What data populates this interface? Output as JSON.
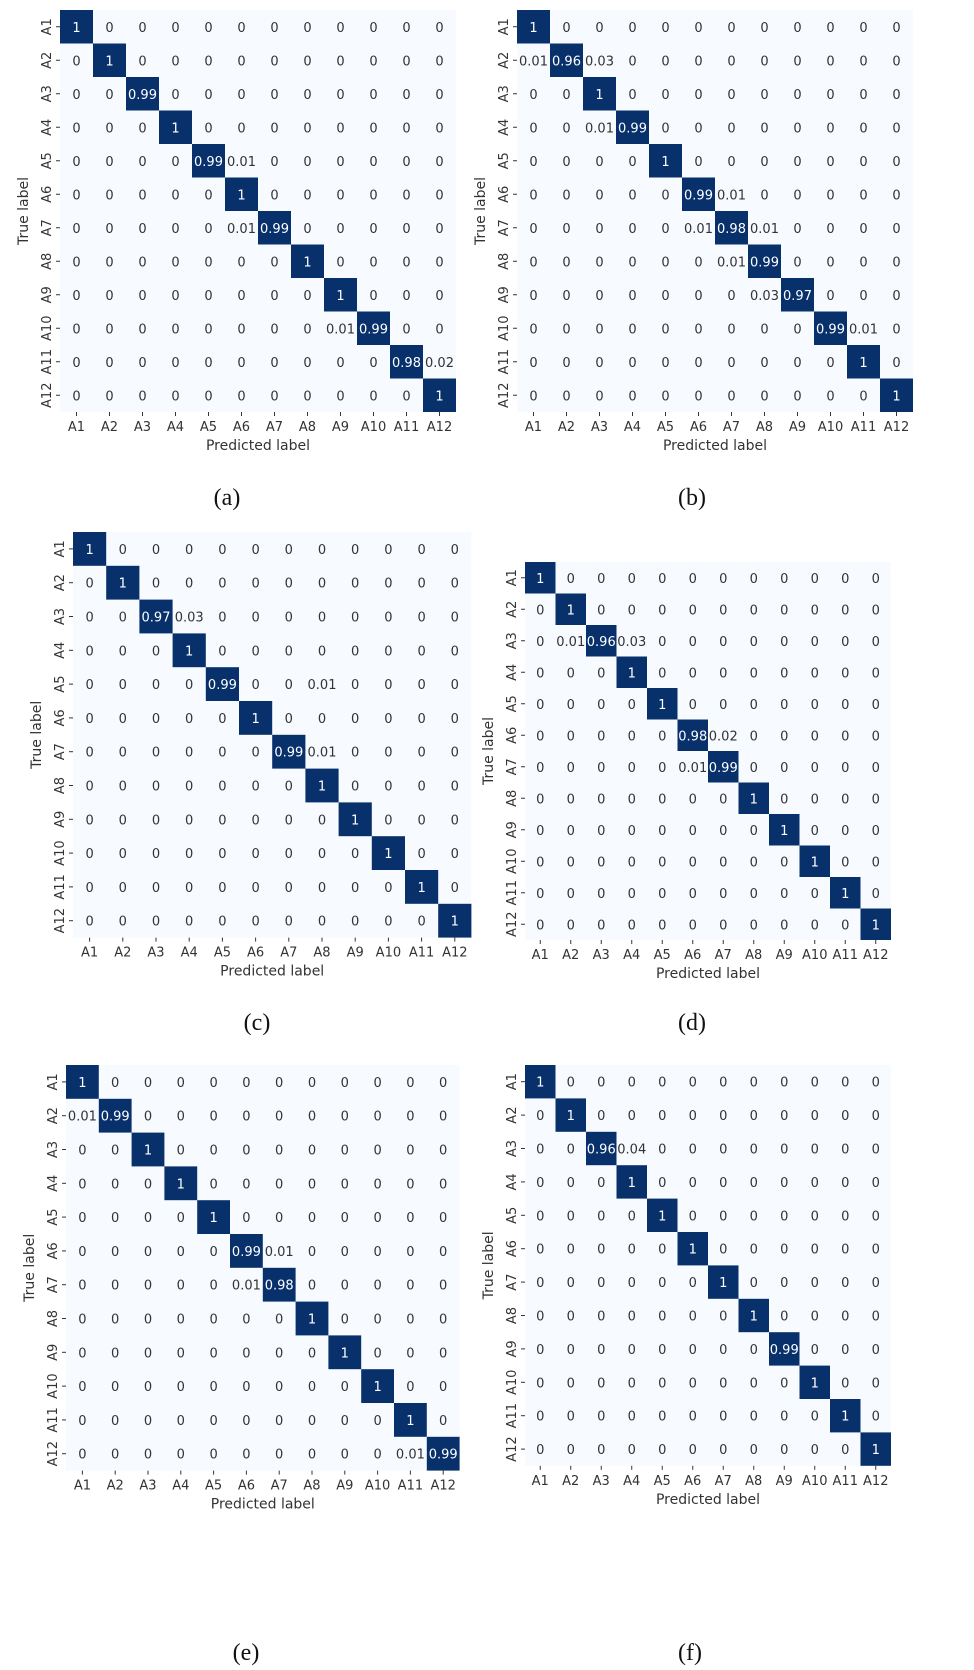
{
  "colors": {
    "diagonal": "#08306b",
    "background": "#f7fbff",
    "text_dark": "#333333",
    "text_light": "#ffffff"
  },
  "chart_data": [
    {
      "type": "heatmap",
      "panel": "(a)",
      "xlabel": "Predicted label",
      "ylabel": "True label",
      "labels": [
        "A1",
        "A2",
        "A3",
        "A4",
        "A5",
        "A6",
        "A7",
        "A8",
        "A9",
        "A10",
        "A11",
        "A12"
      ],
      "matrix": [
        [
          "1",
          "0",
          "0",
          "0",
          "0",
          "0",
          "0",
          "0",
          "0",
          "0",
          "0",
          "0"
        ],
        [
          "0",
          "1",
          "0",
          "0",
          "0",
          "0",
          "0",
          "0",
          "0",
          "0",
          "0",
          "0"
        ],
        [
          "0",
          "0",
          "0.99",
          "0",
          "0",
          "0",
          "0",
          "0",
          "0",
          "0",
          "0",
          "0"
        ],
        [
          "0",
          "0",
          "0",
          "1",
          "0",
          "0",
          "0",
          "0",
          "0",
          "0",
          "0",
          "0"
        ],
        [
          "0",
          "0",
          "0",
          "0",
          "0.99",
          "0.01",
          "0",
          "0",
          "0",
          "0",
          "0",
          "0"
        ],
        [
          "0",
          "0",
          "0",
          "0",
          "0",
          "1",
          "0",
          "0",
          "0",
          "0",
          "0",
          "0"
        ],
        [
          "0",
          "0",
          "0",
          "0",
          "0",
          "0.01",
          "0.99",
          "0",
          "0",
          "0",
          "0",
          "0"
        ],
        [
          "0",
          "0",
          "0",
          "0",
          "0",
          "0",
          "0",
          "1",
          "0",
          "0",
          "0",
          "0"
        ],
        [
          "0",
          "0",
          "0",
          "0",
          "0",
          "0",
          "0",
          "0",
          "1",
          "0",
          "0",
          "0"
        ],
        [
          "0",
          "0",
          "0",
          "0",
          "0",
          "0",
          "0",
          "0",
          "0.01",
          "0.99",
          "0",
          "0"
        ],
        [
          "0",
          "0",
          "0",
          "0",
          "0",
          "0",
          "0",
          "0",
          "0",
          "0",
          "0.98",
          "0.02"
        ],
        [
          "0",
          "0",
          "0",
          "0",
          "0",
          "0",
          "0",
          "0",
          "0",
          "0",
          "0",
          "1"
        ]
      ]
    },
    {
      "type": "heatmap",
      "panel": "(b)",
      "xlabel": "Predicted label",
      "ylabel": "True label",
      "labels": [
        "A1",
        "A2",
        "A3",
        "A4",
        "A5",
        "A6",
        "A7",
        "A8",
        "A9",
        "A10",
        "A11",
        "A12"
      ],
      "matrix": [
        [
          "1",
          "0",
          "0",
          "0",
          "0",
          "0",
          "0",
          "0",
          "0",
          "0",
          "0",
          "0"
        ],
        [
          "0.01",
          "0.96",
          "0.03",
          "0",
          "0",
          "0",
          "0",
          "0",
          "0",
          "0",
          "0",
          "0"
        ],
        [
          "0",
          "0",
          "1",
          "0",
          "0",
          "0",
          "0",
          "0",
          "0",
          "0",
          "0",
          "0"
        ],
        [
          "0",
          "0",
          "0.01",
          "0.99",
          "0",
          "0",
          "0",
          "0",
          "0",
          "0",
          "0",
          "0"
        ],
        [
          "0",
          "0",
          "0",
          "0",
          "1",
          "0",
          "0",
          "0",
          "0",
          "0",
          "0",
          "0"
        ],
        [
          "0",
          "0",
          "0",
          "0",
          "0",
          "0.99",
          "0.01",
          "0",
          "0",
          "0",
          "0",
          "0"
        ],
        [
          "0",
          "0",
          "0",
          "0",
          "0",
          "0.01",
          "0.98",
          "0.01",
          "0",
          "0",
          "0",
          "0"
        ],
        [
          "0",
          "0",
          "0",
          "0",
          "0",
          "0",
          "0.01",
          "0.99",
          "0",
          "0",
          "0",
          "0"
        ],
        [
          "0",
          "0",
          "0",
          "0",
          "0",
          "0",
          "0",
          "0.03",
          "0.97",
          "0",
          "0",
          "0"
        ],
        [
          "0",
          "0",
          "0",
          "0",
          "0",
          "0",
          "0",
          "0",
          "0",
          "0.99",
          "0.01",
          "0"
        ],
        [
          "0",
          "0",
          "0",
          "0",
          "0",
          "0",
          "0",
          "0",
          "0",
          "0",
          "1",
          "0"
        ],
        [
          "0",
          "0",
          "0",
          "0",
          "0",
          "0",
          "0",
          "0",
          "0",
          "0",
          "0",
          "1"
        ]
      ]
    },
    {
      "type": "heatmap",
      "panel": "(c)",
      "xlabel": "Predicted label",
      "ylabel": "True label",
      "labels": [
        "A1",
        "A2",
        "A3",
        "A4",
        "A5",
        "A6",
        "A7",
        "A8",
        "A9",
        "A10",
        "A11",
        "A12"
      ],
      "matrix": [
        [
          "1",
          "0",
          "0",
          "0",
          "0",
          "0",
          "0",
          "0",
          "0",
          "0",
          "0",
          "0"
        ],
        [
          "0",
          "1",
          "0",
          "0",
          "0",
          "0",
          "0",
          "0",
          "0",
          "0",
          "0",
          "0"
        ],
        [
          "0",
          "0",
          "0.97",
          "0.03",
          "0",
          "0",
          "0",
          "0",
          "0",
          "0",
          "0",
          "0"
        ],
        [
          "0",
          "0",
          "0",
          "1",
          "0",
          "0",
          "0",
          "0",
          "0",
          "0",
          "0",
          "0"
        ],
        [
          "0",
          "0",
          "0",
          "0",
          "0.99",
          "0",
          "0",
          "0.01",
          "0",
          "0",
          "0",
          "0"
        ],
        [
          "0",
          "0",
          "0",
          "0",
          "0",
          "1",
          "0",
          "0",
          "0",
          "0",
          "0",
          "0"
        ],
        [
          "0",
          "0",
          "0",
          "0",
          "0",
          "0",
          "0.99",
          "0.01",
          "0",
          "0",
          "0",
          "0"
        ],
        [
          "0",
          "0",
          "0",
          "0",
          "0",
          "0",
          "0",
          "1",
          "0",
          "0",
          "0",
          "0"
        ],
        [
          "0",
          "0",
          "0",
          "0",
          "0",
          "0",
          "0",
          "0",
          "1",
          "0",
          "0",
          "0"
        ],
        [
          "0",
          "0",
          "0",
          "0",
          "0",
          "0",
          "0",
          "0",
          "0",
          "1",
          "0",
          "0"
        ],
        [
          "0",
          "0",
          "0",
          "0",
          "0",
          "0",
          "0",
          "0",
          "0",
          "0",
          "1",
          "0"
        ],
        [
          "0",
          "0",
          "0",
          "0",
          "0",
          "0",
          "0",
          "0",
          "0",
          "0",
          "0",
          "1"
        ]
      ]
    },
    {
      "type": "heatmap",
      "panel": "(d)",
      "xlabel": "Predicted label",
      "ylabel": "True label",
      "labels": [
        "A1",
        "A2",
        "A3",
        "A4",
        "A5",
        "A6",
        "A7",
        "A8",
        "A9",
        "A10",
        "A11",
        "A12"
      ],
      "matrix": [
        [
          "1",
          "0",
          "0",
          "0",
          "0",
          "0",
          "0",
          "0",
          "0",
          "0",
          "0",
          "0"
        ],
        [
          "0",
          "1",
          "0",
          "0",
          "0",
          "0",
          "0",
          "0",
          "0",
          "0",
          "0",
          "0"
        ],
        [
          "0",
          "0.01",
          "0.96",
          "0.03",
          "0",
          "0",
          "0",
          "0",
          "0",
          "0",
          "0",
          "0"
        ],
        [
          "0",
          "0",
          "0",
          "1",
          "0",
          "0",
          "0",
          "0",
          "0",
          "0",
          "0",
          "0"
        ],
        [
          "0",
          "0",
          "0",
          "0",
          "1",
          "0",
          "0",
          "0",
          "0",
          "0",
          "0",
          "0"
        ],
        [
          "0",
          "0",
          "0",
          "0",
          "0",
          "0.98",
          "0.02",
          "0",
          "0",
          "0",
          "0",
          "0"
        ],
        [
          "0",
          "0",
          "0",
          "0",
          "0",
          "0.01",
          "0.99",
          "0",
          "0",
          "0",
          "0",
          "0"
        ],
        [
          "0",
          "0",
          "0",
          "0",
          "0",
          "0",
          "0",
          "1",
          "0",
          "0",
          "0",
          "0"
        ],
        [
          "0",
          "0",
          "0",
          "0",
          "0",
          "0",
          "0",
          "0",
          "1",
          "0",
          "0",
          "0"
        ],
        [
          "0",
          "0",
          "0",
          "0",
          "0",
          "0",
          "0",
          "0",
          "0",
          "1",
          "0",
          "0"
        ],
        [
          "0",
          "0",
          "0",
          "0",
          "0",
          "0",
          "0",
          "0",
          "0",
          "0",
          "1",
          "0"
        ],
        [
          "0",
          "0",
          "0",
          "0",
          "0",
          "0",
          "0",
          "0",
          "0",
          "0",
          "0",
          "1"
        ]
      ]
    },
    {
      "type": "heatmap",
      "panel": "(e)",
      "xlabel": "Predicted label",
      "ylabel": "True label",
      "labels": [
        "A1",
        "A2",
        "A3",
        "A4",
        "A5",
        "A6",
        "A7",
        "A8",
        "A9",
        "A10",
        "A11",
        "A12"
      ],
      "matrix": [
        [
          "1",
          "0",
          "0",
          "0",
          "0",
          "0",
          "0",
          "0",
          "0",
          "0",
          "0",
          "0"
        ],
        [
          "0.01",
          "0.99",
          "0",
          "0",
          "0",
          "0",
          "0",
          "0",
          "0",
          "0",
          "0",
          "0"
        ],
        [
          "0",
          "0",
          "1",
          "0",
          "0",
          "0",
          "0",
          "0",
          "0",
          "0",
          "0",
          "0"
        ],
        [
          "0",
          "0",
          "0",
          "1",
          "0",
          "0",
          "0",
          "0",
          "0",
          "0",
          "0",
          "0"
        ],
        [
          "0",
          "0",
          "0",
          "0",
          "1",
          "0",
          "0",
          "0",
          "0",
          "0",
          "0",
          "0"
        ],
        [
          "0",
          "0",
          "0",
          "0",
          "0",
          "0.99",
          "0.01",
          "0",
          "0",
          "0",
          "0",
          "0"
        ],
        [
          "0",
          "0",
          "0",
          "0",
          "0",
          "0.01",
          "0.98",
          "0",
          "0",
          "0",
          "0",
          "0"
        ],
        [
          "0",
          "0",
          "0",
          "0",
          "0",
          "0",
          "0",
          "1",
          "0",
          "0",
          "0",
          "0"
        ],
        [
          "0",
          "0",
          "0",
          "0",
          "0",
          "0",
          "0",
          "0",
          "1",
          "0",
          "0",
          "0"
        ],
        [
          "0",
          "0",
          "0",
          "0",
          "0",
          "0",
          "0",
          "0",
          "0",
          "1",
          "0",
          "0"
        ],
        [
          "0",
          "0",
          "0",
          "0",
          "0",
          "0",
          "0",
          "0",
          "0",
          "0",
          "1",
          "0"
        ],
        [
          "0",
          "0",
          "0",
          "0",
          "0",
          "0",
          "0",
          "0",
          "0",
          "0",
          "0.01",
          "0.99"
        ]
      ]
    },
    {
      "type": "heatmap",
      "panel": "(f)",
      "xlabel": "Predicted label",
      "ylabel": "True label",
      "labels": [
        "A1",
        "A2",
        "A3",
        "A4",
        "A5",
        "A6",
        "A7",
        "A8",
        "A9",
        "A10",
        "A11",
        "A12"
      ],
      "matrix": [
        [
          "1",
          "0",
          "0",
          "0",
          "0",
          "0",
          "0",
          "0",
          "0",
          "0",
          "0",
          "0"
        ],
        [
          "0",
          "1",
          "0",
          "0",
          "0",
          "0",
          "0",
          "0",
          "0",
          "0",
          "0",
          "0"
        ],
        [
          "0",
          "0",
          "0.96",
          "0.04",
          "0",
          "0",
          "0",
          "0",
          "0",
          "0",
          "0",
          "0"
        ],
        [
          "0",
          "0",
          "0",
          "1",
          "0",
          "0",
          "0",
          "0",
          "0",
          "0",
          "0",
          "0"
        ],
        [
          "0",
          "0",
          "0",
          "0",
          "1",
          "0",
          "0",
          "0",
          "0",
          "0",
          "0",
          "0"
        ],
        [
          "0",
          "0",
          "0",
          "0",
          "0",
          "1",
          "0",
          "0",
          "0",
          "0",
          "0",
          "0"
        ],
        [
          "0",
          "0",
          "0",
          "0",
          "0",
          "0",
          "1",
          "0",
          "0",
          "0",
          "0",
          "0"
        ],
        [
          "0",
          "0",
          "0",
          "0",
          "0",
          "0",
          "0",
          "1",
          "0",
          "0",
          "0",
          "0"
        ],
        [
          "0",
          "0",
          "0",
          "0",
          "0",
          "0",
          "0",
          "0",
          "0.99",
          "0",
          "0",
          "0"
        ],
        [
          "0",
          "0",
          "0",
          "0",
          "0",
          "0",
          "0",
          "0",
          "0",
          "1",
          "0",
          "0"
        ],
        [
          "0",
          "0",
          "0",
          "0",
          "0",
          "0",
          "0",
          "0",
          "0",
          "0",
          "1",
          "0"
        ],
        [
          "0",
          "0",
          "0",
          "0",
          "0",
          "0",
          "0",
          "0",
          "0",
          "0",
          "0",
          "1"
        ]
      ]
    }
  ]
}
